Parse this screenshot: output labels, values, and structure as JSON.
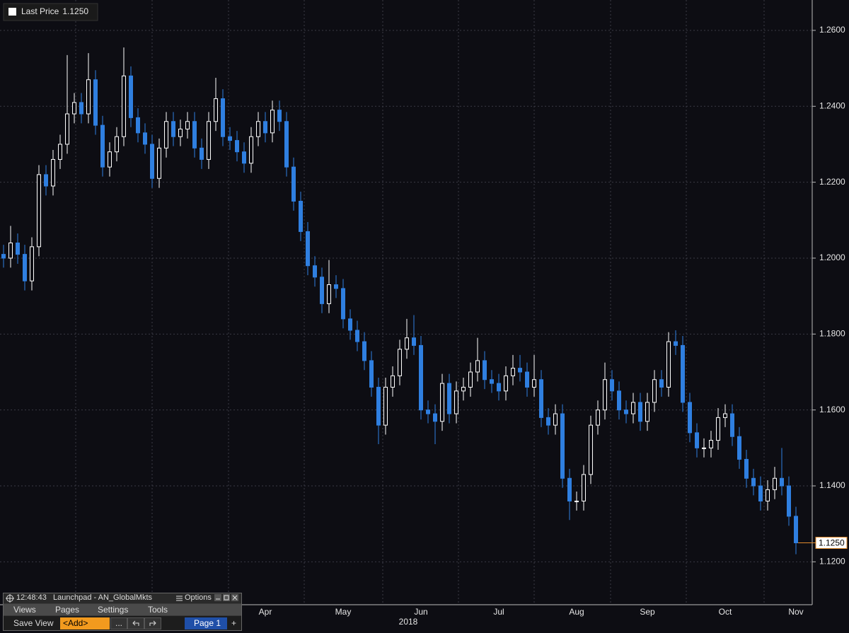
{
  "chart_data": {
    "type": "candlestick",
    "series_name": "Last Price",
    "last_price": {
      "value": 1.125,
      "label": "1.1250"
    },
    "xlabel": "2018",
    "up_color": "#ffffff",
    "down_color": "#2f7fe0",
    "last_color": "#e08a2c",
    "grid": true,
    "ylim": [
      1.1087,
      1.268
    ],
    "yticks": [
      {
        "value": 1.12,
        "label": "1.1200"
      },
      {
        "value": 1.14,
        "label": "1.1400"
      },
      {
        "value": 1.16,
        "label": "1.1600"
      },
      {
        "value": 1.18,
        "label": "1.1800"
      },
      {
        "value": 1.2,
        "label": "1.2000"
      },
      {
        "value": 1.22,
        "label": "1.2200"
      },
      {
        "value": 1.24,
        "label": "1.2400"
      },
      {
        "value": 1.26,
        "label": "1.2600"
      }
    ],
    "categories": [
      null,
      null,
      null,
      null,
      null,
      null,
      null,
      null,
      null,
      null,
      null,
      null,
      null,
      null,
      null,
      null,
      null,
      null,
      null,
      null,
      null,
      null,
      null,
      null,
      null,
      null,
      null,
      null,
      null,
      null,
      null,
      null,
      null,
      null,
      null,
      null,
      null,
      "Apr",
      null,
      null,
      null,
      null,
      null,
      null,
      null,
      null,
      null,
      null,
      "May",
      null,
      null,
      null,
      null,
      null,
      null,
      null,
      null,
      null,
      null,
      "Jun",
      null,
      null,
      null,
      null,
      null,
      null,
      null,
      null,
      null,
      null,
      "Jul",
      null,
      null,
      null,
      null,
      null,
      null,
      null,
      null,
      null,
      null,
      "Aug",
      null,
      null,
      null,
      null,
      null,
      null,
      null,
      null,
      null,
      "Sep",
      null,
      null,
      null,
      null,
      null,
      null,
      null,
      null,
      null,
      null,
      "Oct",
      null,
      null,
      null,
      null,
      null,
      null,
      null,
      null,
      null,
      "Nov"
    ],
    "open": [
      1.201,
      1.2,
      1.204,
      1.201,
      1.194,
      1.203,
      1.222,
      1.219,
      1.226,
      1.23,
      1.238,
      1.241,
      1.238,
      1.247,
      1.235,
      1.224,
      1.228,
      1.232,
      1.248,
      1.237,
      1.233,
      1.23,
      1.221,
      1.229,
      1.236,
      1.232,
      1.234,
      1.236,
      1.229,
      1.226,
      1.236,
      1.242,
      1.232,
      1.231,
      1.228,
      1.225,
      1.232,
      1.236,
      1.233,
      1.239,
      1.236,
      1.224,
      1.215,
      1.207,
      1.198,
      1.195,
      1.188,
      1.193,
      1.192,
      1.184,
      1.181,
      1.178,
      1.173,
      1.166,
      1.156,
      1.166,
      1.169,
      1.176,
      1.179,
      1.177,
      1.16,
      1.159,
      1.157,
      1.167,
      1.159,
      1.165,
      1.166,
      1.17,
      1.173,
      1.168,
      1.167,
      1.165,
      1.169,
      1.171,
      1.17,
      1.166,
      1.168,
      1.158,
      1.156,
      1.159,
      1.142,
      1.136,
      1.136,
      1.143,
      1.156,
      1.16,
      1.168,
      1.165,
      1.16,
      1.159,
      1.162,
      1.157,
      1.162,
      1.168,
      1.166,
      1.178,
      1.177,
      1.162,
      1.154,
      1.15,
      1.15,
      1.152,
      1.158,
      1.159,
      1.153,
      1.147,
      1.142,
      1.14,
      1.136,
      1.139,
      1.142,
      1.14,
      1.132
    ],
    "high": [
      1.2035,
      1.2085,
      1.2065,
      1.2035,
      1.2055,
      1.2245,
      1.2245,
      1.2285,
      1.2325,
      1.2535,
      1.2435,
      1.2435,
      1.254,
      1.2495,
      1.2375,
      1.2305,
      1.2345,
      1.2555,
      1.2505,
      1.2395,
      1.2355,
      1.2325,
      1.2315,
      1.2385,
      1.2385,
      1.2365,
      1.2385,
      1.2385,
      1.2315,
      1.2385,
      1.2475,
      1.2445,
      1.2345,
      1.2335,
      1.2305,
      1.2345,
      1.2385,
      1.2385,
      1.2415,
      1.2415,
      1.2385,
      1.2265,
      1.2175,
      1.2095,
      1.2005,
      1.1975,
      1.1995,
      1.1955,
      1.1945,
      1.1865,
      1.1835,
      1.1805,
      1.1755,
      1.1685,
      1.1685,
      1.1715,
      1.1785,
      1.184,
      1.185,
      1.1795,
      1.1625,
      1.1615,
      1.1695,
      1.1695,
      1.1675,
      1.1685,
      1.1725,
      1.179,
      1.1755,
      1.1705,
      1.1695,
      1.1715,
      1.1745,
      1.1745,
      1.1725,
      1.1745,
      1.1705,
      1.1605,
      1.1615,
      1.1615,
      1.1445,
      1.1385,
      1.1455,
      1.1585,
      1.1625,
      1.1725,
      1.1705,
      1.1675,
      1.1625,
      1.1645,
      1.1645,
      1.1645,
      1.1705,
      1.1705,
      1.1805,
      1.181,
      1.1795,
      1.1645,
      1.1565,
      1.1525,
      1.1545,
      1.1605,
      1.1615,
      1.1615,
      1.1555,
      1.1495,
      1.1445,
      1.1425,
      1.1415,
      1.145,
      1.15,
      1.1425,
      1.1345
    ],
    "low": [
      1.1975,
      1.1975,
      1.1985,
      1.1915,
      1.1915,
      1.2005,
      1.2165,
      1.2165,
      1.2235,
      1.2275,
      1.2355,
      1.2355,
      1.2355,
      1.2325,
      1.2215,
      1.2215,
      1.2255,
      1.2295,
      1.2345,
      1.2305,
      1.2275,
      1.2185,
      1.2185,
      1.2265,
      1.2295,
      1.2295,
      1.2315,
      1.2265,
      1.2235,
      1.2235,
      1.2335,
      1.2295,
      1.2285,
      1.2255,
      1.2225,
      1.2225,
      1.2295,
      1.2305,
      1.2305,
      1.2335,
      1.2215,
      1.2125,
      1.2045,
      1.1955,
      1.1925,
      1.1855,
      1.1855,
      1.1895,
      1.1815,
      1.1785,
      1.1755,
      1.1705,
      1.1635,
      1.151,
      1.1535,
      1.1635,
      1.1665,
      1.1735,
      1.1745,
      1.1575,
      1.1565,
      1.151,
      1.1545,
      1.1565,
      1.1565,
      1.1625,
      1.1635,
      1.1675,
      1.1655,
      1.1645,
      1.1625,
      1.1625,
      1.1665,
      1.1675,
      1.1635,
      1.1635,
      1.1555,
      1.1535,
      1.1535,
      1.1395,
      1.131,
      1.1335,
      1.1335,
      1.1405,
      1.1535,
      1.1575,
      1.1625,
      1.1575,
      1.1565,
      1.1565,
      1.1545,
      1.1545,
      1.1595,
      1.1635,
      1.1635,
      1.1745,
      1.1595,
      1.1515,
      1.1475,
      1.1475,
      1.1475,
      1.1495,
      1.1555,
      1.1505,
      1.1445,
      1.1395,
      1.1375,
      1.1335,
      1.1335,
      1.1365,
      1.1375,
      1.1295,
      1.122
    ],
    "close": [
      1.2,
      1.204,
      1.201,
      1.194,
      1.203,
      1.222,
      1.219,
      1.226,
      1.23,
      1.238,
      1.241,
      1.238,
      1.247,
      1.235,
      1.224,
      1.228,
      1.232,
      1.248,
      1.237,
      1.233,
      1.23,
      1.221,
      1.229,
      1.236,
      1.232,
      1.234,
      1.236,
      1.229,
      1.226,
      1.236,
      1.242,
      1.232,
      1.231,
      1.228,
      1.225,
      1.232,
      1.236,
      1.233,
      1.239,
      1.236,
      1.224,
      1.215,
      1.207,
      1.198,
      1.195,
      1.188,
      1.193,
      1.192,
      1.184,
      1.181,
      1.178,
      1.173,
      1.166,
      1.156,
      1.166,
      1.169,
      1.176,
      1.179,
      1.177,
      1.16,
      1.159,
      1.157,
      1.167,
      1.159,
      1.165,
      1.166,
      1.17,
      1.173,
      1.168,
      1.167,
      1.165,
      1.169,
      1.171,
      1.17,
      1.166,
      1.168,
      1.158,
      1.156,
      1.159,
      1.142,
      1.136,
      1.136,
      1.143,
      1.156,
      1.16,
      1.168,
      1.165,
      1.16,
      1.159,
      1.162,
      1.157,
      1.162,
      1.168,
      1.166,
      1.178,
      1.177,
      1.162,
      1.154,
      1.15,
      1.15,
      1.152,
      1.158,
      1.159,
      1.153,
      1.147,
      1.142,
      1.14,
      1.136,
      1.139,
      1.142,
      1.14,
      1.132,
      1.125
    ]
  },
  "launchpad": {
    "time": "12:48:43",
    "title": "Launchpad - AN_GlobalMkts",
    "options": "Options",
    "menu": [
      "Views",
      "Pages",
      "Settings",
      "Tools"
    ],
    "save_view": "Save View",
    "add": "<Add>",
    "more": "...",
    "page": "Page 1",
    "plus": "+"
  }
}
